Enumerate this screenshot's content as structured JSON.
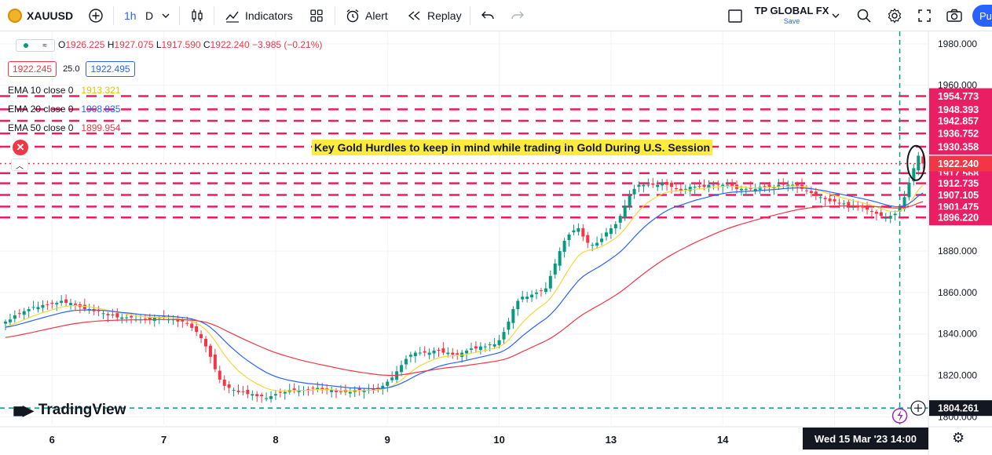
{
  "toolbar": {
    "symbol": "XAUUSD",
    "interval": "1h",
    "interval_suffix": "D",
    "indicators_label": "Indicators",
    "alert_label": "Alert",
    "replay_label": "Replay",
    "broker_name": "TP GLOBAL FX",
    "broker_save": "Save",
    "publish_label": "Pu"
  },
  "legend": {
    "ohlc": {
      "o_label": "O",
      "o": "1926.225",
      "h_label": "H",
      "h": "1927.075",
      "l_label": "L",
      "l": "1917.590",
      "c_label": "C",
      "c": "1922.240",
      "change": "−3.985 (−0.21%)"
    },
    "bid": "1922.245",
    "spread": "25.0",
    "ask": "1922.495",
    "ema": [
      {
        "label": "EMA 10 close 0",
        "value": "1913.321",
        "color": "#f5d63d"
      },
      {
        "label": "EMA 20 close 0",
        "value": "1908.835",
        "color": "#2962ff"
      },
      {
        "label": "EMA 50 close 0",
        "value": "1899.954",
        "color": "#f23645"
      }
    ]
  },
  "annotation": {
    "text": "Key Gold Hurdles to keep in mind while trading in Gold During U.S. Session",
    "background": "#ffeb3b"
  },
  "branding": {
    "logo_text": "TradingView"
  },
  "crosshair": {
    "time_label": "Wed 15 Mar '23   14:00",
    "price_label": "1804.261"
  },
  "chart_data": {
    "type": "candlestick",
    "title": "",
    "ylim": [
      1796,
      1986
    ],
    "y_ticks": [
      1800,
      1820,
      1840,
      1860,
      1880,
      1960,
      1980
    ],
    "y_tick_labels": [
      "1800.000",
      "1820.000",
      "1840.000",
      "1860.000",
      "1880.000",
      "1960.000",
      "1980.000"
    ],
    "x_ticks": [
      {
        "label": "6",
        "bar": 10
      },
      {
        "label": "7",
        "bar": 34
      },
      {
        "label": "8",
        "bar": 58
      },
      {
        "label": "9",
        "bar": 82
      },
      {
        "label": "10",
        "bar": 106
      },
      {
        "label": "13",
        "bar": 130
      },
      {
        "label": "14",
        "bar": 154
      },
      {
        "label": "15",
        "bar": 178
      }
    ],
    "horizontal_levels": [
      1954.773,
      1948.393,
      1942.857,
      1936.752,
      1930.358,
      1917.568,
      1912.735,
      1907.105,
      1901.475,
      1896.22
    ],
    "horizontal_level_labels": [
      "1954.773",
      "1948.393",
      "1942.857",
      "1936.752",
      "1930.358",
      "1917.568",
      "1912.735",
      "1907.105",
      "1901.475",
      "1896.220"
    ],
    "level_color": "#e91e63",
    "last_price": 1922.24,
    "last_price_label": "1922.240",
    "crosshair_price": 1804.261,
    "crosshair_bar": 192,
    "close_series": [
      1846,
      1847,
      1849,
      1850,
      1851,
      1852,
      1853,
      1853,
      1854,
      1854,
      1855,
      1855,
      1856,
      1855,
      1855,
      1854,
      1853,
      1852,
      1852,
      1851,
      1851,
      1850,
      1849,
      1849,
      1848,
      1848,
      1848,
      1848,
      1847,
      1847,
      1847,
      1847,
      1848,
      1848,
      1848,
      1847,
      1847,
      1846,
      1846,
      1845,
      1843,
      1841,
      1838,
      1834,
      1829,
      1823,
      1818,
      1815,
      1814,
      1813,
      1812,
      1812,
      1811,
      1811,
      1810,
      1810,
      1809,
      1810,
      1811,
      1812,
      1812,
      1813,
      1813,
      1813,
      1813,
      1813,
      1814,
      1814,
      1813,
      1813,
      1813,
      1812,
      1812,
      1812,
      1812,
      1813,
      1813,
      1813,
      1813,
      1813,
      1814,
      1815,
      1817,
      1819,
      1822,
      1825,
      1828,
      1830,
      1831,
      1831,
      1831,
      1831,
      1832,
      1832,
      1831,
      1831,
      1830,
      1830,
      1831,
      1832,
      1833,
      1833,
      1834,
      1834,
      1835,
      1835,
      1837,
      1841,
      1846,
      1852,
      1856,
      1858,
      1858,
      1859,
      1860,
      1861,
      1862,
      1868,
      1874,
      1880,
      1885,
      1888,
      1890,
      1891,
      1887,
      1884,
      1883,
      1884,
      1886,
      1889,
      1891,
      1893,
      1897,
      1902,
      1907,
      1910,
      1912,
      1912,
      1912,
      1912,
      1912,
      1913,
      1912,
      1911,
      1910,
      1909,
      1910,
      1911,
      1911,
      1911,
      1911,
      1912,
      1912,
      1912,
      1912,
      1912,
      1911,
      1910,
      1910,
      1910,
      1910,
      1910,
      1911,
      1911,
      1911,
      1911,
      1912,
      1912,
      1912,
      1912,
      1911,
      1910,
      1909,
      1908,
      1907,
      1906,
      1905,
      1904,
      1904,
      1903,
      1903,
      1902,
      1902,
      1901,
      1901,
      1900,
      1899,
      1898,
      1897,
      1896,
      1897,
      1898,
      1901,
      1906,
      1913,
      1920,
      1926,
      1922.24
    ],
    "series": [
      {
        "name": "EMA 10 close 0",
        "color": "#f5d63d"
      },
      {
        "name": "EMA 20 close 0",
        "color": "#2962ff"
      },
      {
        "name": "EMA 50 close 0",
        "color": "#f23645"
      }
    ],
    "up_color": "#089981",
    "down_color": "#f23645"
  }
}
